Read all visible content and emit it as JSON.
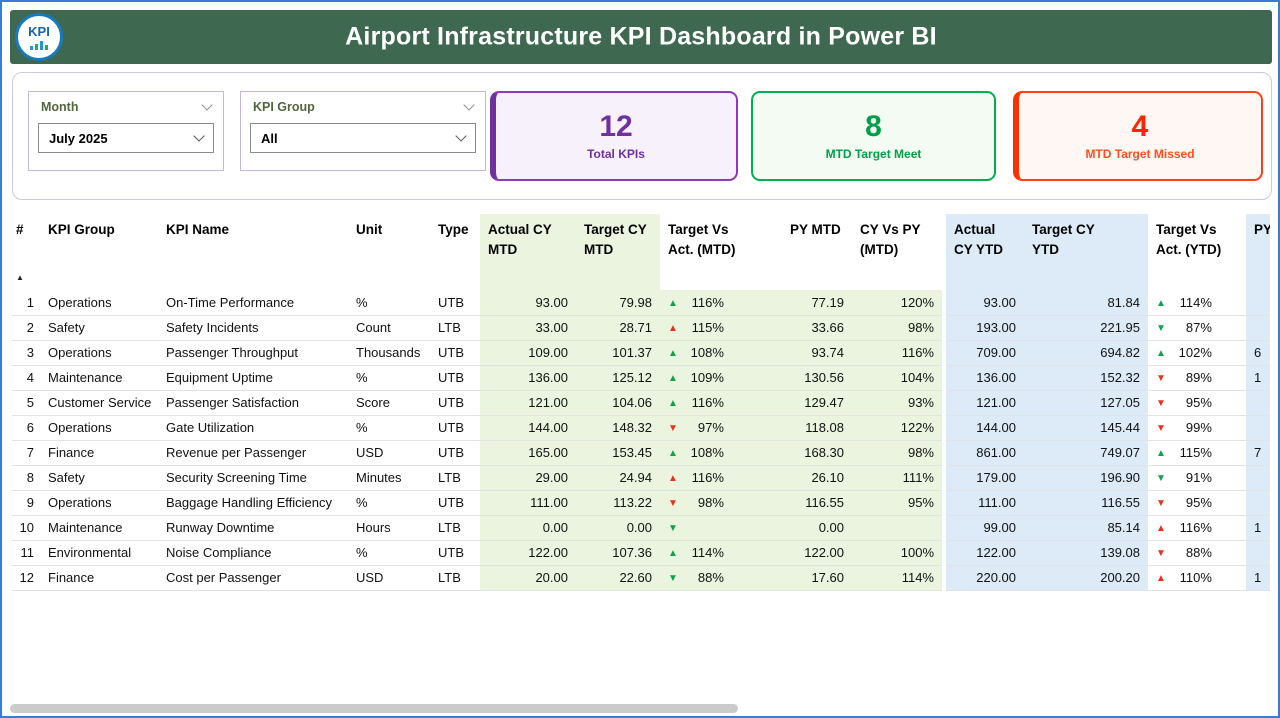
{
  "header": {
    "title": "Airport Infrastructure KPI Dashboard  in Power BI",
    "logo_text": "KPI"
  },
  "filters": {
    "month": {
      "label": "Month",
      "value": "July 2025"
    },
    "kpi_group": {
      "label": "KPI Group",
      "value": "All"
    }
  },
  "cards": [
    {
      "value": "12",
      "label": "Total KPIs",
      "color": "#7030a0"
    },
    {
      "value": "8",
      "label": "MTD Target Meet",
      "color": "#00b050"
    },
    {
      "value": "4",
      "label": "MTD Target Missed",
      "color": "#ff3000"
    }
  ],
  "table": {
    "sort_icon": "▲",
    "columns": [
      "#",
      "KPI Group",
      "KPI Name",
      "Unit",
      "Type",
      "Actual CY MTD",
      "Target CY MTD",
      "Target Vs Act. (MTD)",
      "PY MTD",
      "CY Vs PY (MTD)",
      "Actual CY YTD",
      "Target CY YTD",
      "Target Vs Act. (YTD)",
      "PY"
    ],
    "rows": [
      {
        "num": "1",
        "group": "Operations",
        "name": "On-Time Performance",
        "unit": "%",
        "type": "UTB",
        "actual_mtd": "93.00",
        "target_mtd": "79.98",
        "tva_mtd": {
          "dir": "up",
          "color": "green",
          "pct": "116%"
        },
        "py_mtd": "77.19",
        "cy_vs_py_mtd": "120%",
        "actual_ytd": "93.00",
        "target_ytd": "81.84",
        "tva_ytd": {
          "dir": "up",
          "color": "green",
          "pct": "114%"
        },
        "py": ""
      },
      {
        "num": "2",
        "group": "Safety",
        "name": "Safety Incidents",
        "unit": "Count",
        "type": "LTB",
        "actual_mtd": "33.00",
        "target_mtd": "28.71",
        "tva_mtd": {
          "dir": "up",
          "color": "red",
          "pct": "115%"
        },
        "py_mtd": "33.66",
        "cy_vs_py_mtd": "98%",
        "actual_ytd": "193.00",
        "target_ytd": "221.95",
        "tva_ytd": {
          "dir": "down",
          "color": "green",
          "pct": "87%"
        },
        "py": ""
      },
      {
        "num": "3",
        "group": "Operations",
        "name": "Passenger Throughput",
        "unit": "Thousands",
        "type": "UTB",
        "actual_mtd": "109.00",
        "target_mtd": "101.37",
        "tva_mtd": {
          "dir": "up",
          "color": "green",
          "pct": "108%"
        },
        "py_mtd": "93.74",
        "cy_vs_py_mtd": "116%",
        "actual_ytd": "709.00",
        "target_ytd": "694.82",
        "tva_ytd": {
          "dir": "up",
          "color": "green",
          "pct": "102%"
        },
        "py": "6"
      },
      {
        "num": "4",
        "group": "Maintenance",
        "name": "Equipment Uptime",
        "unit": "%",
        "type": "UTB",
        "actual_mtd": "136.00",
        "target_mtd": "125.12",
        "tva_mtd": {
          "dir": "up",
          "color": "green",
          "pct": "109%"
        },
        "py_mtd": "130.56",
        "cy_vs_py_mtd": "104%",
        "actual_ytd": "136.00",
        "target_ytd": "152.32",
        "tva_ytd": {
          "dir": "down",
          "color": "red",
          "pct": "89%"
        },
        "py": "1"
      },
      {
        "num": "5",
        "group": "Customer Service",
        "name": "Passenger Satisfaction",
        "unit": "Score",
        "type": "UTB",
        "actual_mtd": "121.00",
        "target_mtd": "104.06",
        "tva_mtd": {
          "dir": "up",
          "color": "green",
          "pct": "116%"
        },
        "py_mtd": "129.47",
        "cy_vs_py_mtd": "93%",
        "actual_ytd": "121.00",
        "target_ytd": "127.05",
        "tva_ytd": {
          "dir": "down",
          "color": "red",
          "pct": "95%"
        },
        "py": ""
      },
      {
        "num": "6",
        "group": "Operations",
        "name": "Gate Utilization",
        "unit": "%",
        "type": "UTB",
        "actual_mtd": "144.00",
        "target_mtd": "148.32",
        "tva_mtd": {
          "dir": "down",
          "color": "red",
          "pct": "97%"
        },
        "py_mtd": "118.08",
        "cy_vs_py_mtd": "122%",
        "actual_ytd": "144.00",
        "target_ytd": "145.44",
        "tva_ytd": {
          "dir": "down",
          "color": "red",
          "pct": "99%"
        },
        "py": ""
      },
      {
        "num": "7",
        "group": "Finance",
        "name": "Revenue per Passenger",
        "unit": "USD",
        "type": "UTB",
        "actual_mtd": "165.00",
        "target_mtd": "153.45",
        "tva_mtd": {
          "dir": "up",
          "color": "green",
          "pct": "108%"
        },
        "py_mtd": "168.30",
        "cy_vs_py_mtd": "98%",
        "actual_ytd": "861.00",
        "target_ytd": "749.07",
        "tva_ytd": {
          "dir": "up",
          "color": "green",
          "pct": "115%"
        },
        "py": "7"
      },
      {
        "num": "8",
        "group": "Safety",
        "name": "Security Screening Time",
        "unit": "Minutes",
        "type": "LTB",
        "actual_mtd": "29.00",
        "target_mtd": "24.94",
        "tva_mtd": {
          "dir": "up",
          "color": "red",
          "pct": "116%"
        },
        "py_mtd": "26.10",
        "cy_vs_py_mtd": "111%",
        "actual_ytd": "179.00",
        "target_ytd": "196.90",
        "tva_ytd": {
          "dir": "down",
          "color": "green",
          "pct": "91%"
        },
        "py": ""
      },
      {
        "num": "9",
        "group": "Operations",
        "name": "Baggage Handling Efficiency",
        "unit": "%",
        "type": "UTB",
        "actual_mtd": "111.00",
        "target_mtd": "113.22",
        "tva_mtd": {
          "dir": "down",
          "color": "red",
          "pct": "98%"
        },
        "py_mtd": "116.55",
        "cy_vs_py_mtd": "95%",
        "actual_ytd": "111.00",
        "target_ytd": "116.55",
        "tva_ytd": {
          "dir": "down",
          "color": "red",
          "pct": "95%"
        },
        "py": ""
      },
      {
        "num": "10",
        "group": "Maintenance",
        "name": "Runway Downtime",
        "unit": "Hours",
        "type": "LTB",
        "actual_mtd": "0.00",
        "target_mtd": "0.00",
        "tva_mtd": {
          "dir": "down",
          "color": "green",
          "pct": ""
        },
        "py_mtd": "0.00",
        "cy_vs_py_mtd": "",
        "actual_ytd": "99.00",
        "target_ytd": "85.14",
        "tva_ytd": {
          "dir": "up",
          "color": "red",
          "pct": "116%"
        },
        "py": "1"
      },
      {
        "num": "11",
        "group": "Environmental",
        "name": "Noise Compliance",
        "unit": "%",
        "type": "UTB",
        "actual_mtd": "122.00",
        "target_mtd": "107.36",
        "tva_mtd": {
          "dir": "up",
          "color": "green",
          "pct": "114%"
        },
        "py_mtd": "122.00",
        "cy_vs_py_mtd": "100%",
        "actual_ytd": "122.00",
        "target_ytd": "139.08",
        "tva_ytd": {
          "dir": "down",
          "color": "red",
          "pct": "88%"
        },
        "py": ""
      },
      {
        "num": "12",
        "group": "Finance",
        "name": "Cost per Passenger",
        "unit": "USD",
        "type": "LTB",
        "actual_mtd": "20.00",
        "target_mtd": "22.60",
        "tva_mtd": {
          "dir": "down",
          "color": "green",
          "pct": "88%"
        },
        "py_mtd": "17.60",
        "cy_vs_py_mtd": "114%",
        "actual_ytd": "220.00",
        "target_ytd": "200.20",
        "tva_ytd": {
          "dir": "up",
          "color": "red",
          "pct": "110%"
        },
        "py": "1"
      }
    ]
  },
  "colors": {
    "header_bar": "#3e6950",
    "mtd_band": "#eaf4df",
    "ytd_band": "#ddeaf8",
    "good_indicator": "#12a14b",
    "bad_indicator": "#e03420",
    "card_purple": "#7030a0",
    "card_green": "#00b050",
    "card_red": "#ff3000"
  }
}
